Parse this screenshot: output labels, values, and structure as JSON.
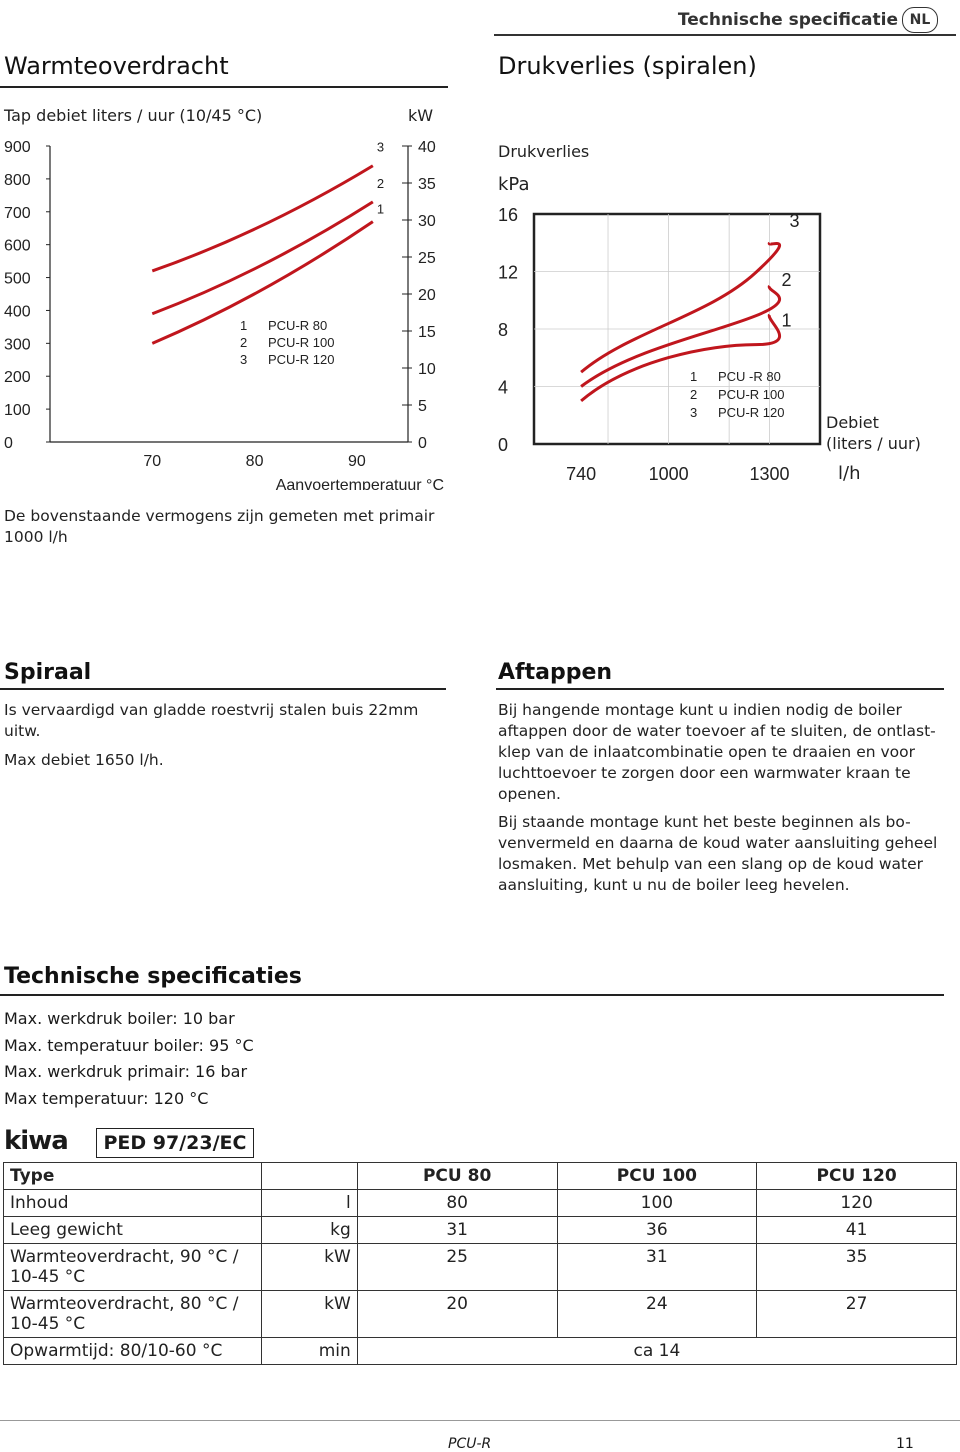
{
  "header": {
    "section": "Technische specificatie",
    "lang": "NL"
  },
  "warmte": {
    "title": "Warmteoverdracht",
    "left_axis_title": "Tap debiet liters / uur (10/45 °C)",
    "right_axis_unit": "kW",
    "x_title": "Aanvoertemperatuur °C",
    "note": "De bovenstaande vermogens zijn gemeten met primair 1000 l/h"
  },
  "druk": {
    "title": "Drukverlies (spiralen)",
    "y_title": "Drukverlies",
    "y_unit": "kPa",
    "x_title": "Debiet (liters / uur)",
    "x_unit": "l/h"
  },
  "chart_data": [
    {
      "type": "line",
      "x": [
        70,
        90
      ],
      "xticks": [
        "70",
        "80",
        "90"
      ],
      "xlabel": "Aanvoertemperatuur °C",
      "ylabel": "Tap debiet liters / uur (10/45 °C)",
      "ylim": [
        0,
        900
      ],
      "yticks": [
        "0",
        "100",
        "200",
        "300",
        "400",
        "500",
        "600",
        "700",
        "800",
        "900"
      ],
      "y2label": "kW",
      "y2ticks": [
        "0",
        "5",
        "10",
        "15",
        "20",
        "25",
        "30",
        "35",
        "40"
      ],
      "y2lim": [
        0,
        40
      ],
      "legend": [
        {
          "num": "1",
          "name": "PCU-R  80"
        },
        {
          "num": "2",
          "name": "PCU-R 100"
        },
        {
          "num": "3",
          "name": "PCU-R 120"
        }
      ],
      "series": [
        {
          "label": "1",
          "values": [
            300,
            670
          ]
        },
        {
          "label": "2",
          "values": [
            390,
            730
          ]
        },
        {
          "label": "3",
          "values": [
            520,
            840
          ]
        }
      ],
      "color": "#c0161d"
    },
    {
      "type": "line",
      "xticks": [
        "740",
        "1000",
        "1300"
      ],
      "xlabel": "Debiet (liters / uur)",
      "xunit": "l/h",
      "ylabel": "Drukverlies",
      "yunit": "kPa",
      "yticks": [
        "0",
        "4",
        "8",
        "12",
        "16"
      ],
      "ylim": [
        0,
        16
      ],
      "legend": [
        {
          "num": "1",
          "name": "PCU -R  80"
        },
        {
          "num": "2",
          "name": "PCU-R 100"
        },
        {
          "num": "3",
          "name": "PCU-R 120"
        }
      ],
      "series": [
        {
          "label": "1",
          "points": [
            [
              740,
              3
            ],
            [
              1000,
              6.5
            ],
            [
              1300,
              9
            ]
          ]
        },
        {
          "label": "2",
          "points": [
            [
              740,
              4
            ],
            [
              1000,
              7.2
            ],
            [
              1300,
              11
            ]
          ]
        },
        {
          "label": "3",
          "points": [
            [
              740,
              5
            ],
            [
              1000,
              8.5
            ],
            [
              1300,
              14
            ]
          ]
        }
      ],
      "color": "#c0161d"
    }
  ],
  "spiraal": {
    "title": "Spiraal",
    "p1": "Is vervaardigd van gladde roestvrij stalen buis 22mm uitw.",
    "p2": "Max debiet 1650 l/h."
  },
  "aftappen": {
    "title": "Aftappen",
    "p1": "Bij hangende montage kunt u indien nodig de boiler aftappen door de water toevoer af te sluiten, de ontlast-klep van de inlaatcombinatie open te draaien en voor luchttoevoer te zorgen door een warmwater kraan te openen.",
    "p2": "Bij staande montage kunt het beste beginnen als bo-venvermeld en daarna de koud water aansluiting geheel losmaken. Met behulp van een slang op de koud water aansluiting, kunt u nu de boiler leeg hevelen."
  },
  "tech": {
    "title": "Technische specificaties",
    "lines": [
      "Max. werkdruk boiler: 10 bar",
      "Max. temperatuur boiler: 95 °C",
      "Max. werkdruk primair: 16 bar",
      "Max temperatuur: 120 °C"
    ],
    "logo": "kiwa",
    "ped": "PED 97/23/EC"
  },
  "table": {
    "headers": [
      "Type",
      "",
      "PCU 80",
      "PCU 100",
      "PCU 120"
    ],
    "rows": [
      [
        "Inhoud",
        "l",
        "80",
        "100",
        "120"
      ],
      [
        "Leeg gewicht",
        "kg",
        "31",
        "36",
        "41"
      ],
      [
        "Warmteoverdracht, 90 °C / 10-45 °C",
        "kW",
        "25",
        "31",
        "35"
      ],
      [
        "Warmteoverdracht, 80 °C / 10-45 °C",
        "kW",
        "20",
        "24",
        "27"
      ]
    ],
    "last_row": [
      "Opwarmtijd: 80/10-60 °C",
      "min",
      "ca 14"
    ]
  },
  "footer": {
    "product": "PCU-R",
    "page": "11"
  }
}
